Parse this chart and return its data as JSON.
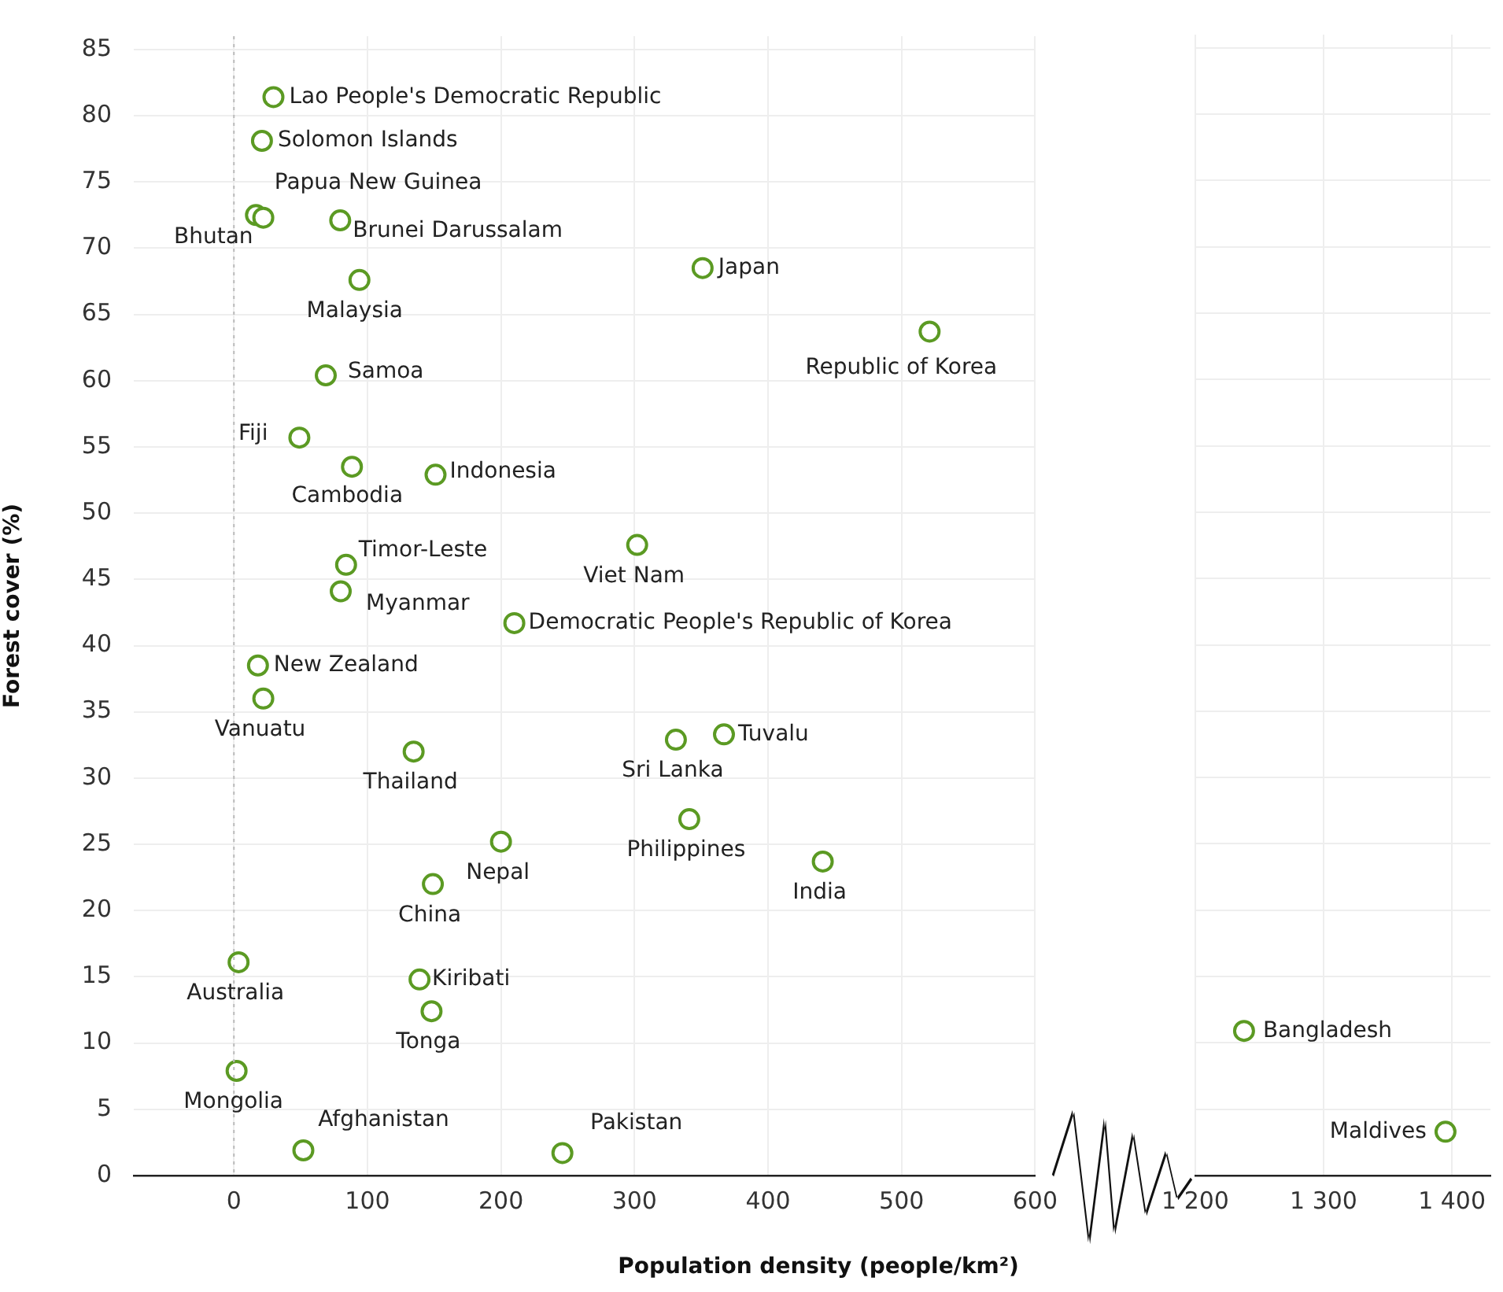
{
  "chart_data": [
    {
      "type": "scatter",
      "xlabel": "Population density (people/km²)",
      "ylabel": "Forest cover (%)",
      "xlim": [
        -75,
        600
      ],
      "ylim": [
        0,
        86
      ],
      "xticks": [
        0,
        100,
        200,
        300,
        400,
        500,
        600
      ],
      "yticks": [
        0,
        5,
        10,
        15,
        20,
        25,
        30,
        35,
        40,
        45,
        50,
        55,
        60,
        65,
        70,
        75,
        80,
        85
      ],
      "grid": true,
      "marker": "circle",
      "ref_lines": [
        {
          "axis": "x",
          "value": 0,
          "color": "#bbbbbb",
          "line_style": "dotted"
        }
      ],
      "series": [
        {
          "color": "#5b9a23",
          "x": [
            29.6,
            21,
            16.5,
            22,
            79.6,
            94,
            351,
            521,
            68.8,
            49,
            88.4,
            151,
            84,
            80,
            302,
            210,
            18,
            22,
            134.6,
            331,
            367,
            341,
            200,
            441,
            149,
            3.5,
            139,
            148,
            2,
            52,
            246
          ],
          "values": [
            81.4,
            78.1,
            72.5,
            72.3,
            72.1,
            67.6,
            68.5,
            63.7,
            60.4,
            55.7,
            53.5,
            52.9,
            46.1,
            44.1,
            47.6,
            41.7,
            38.5,
            36,
            32,
            32.9,
            33.3,
            26.9,
            25.2,
            23.7,
            22,
            16.1,
            14.8,
            12.4,
            7.9,
            1.9,
            1.7
          ]
        }
      ],
      "annotations": [
        {
          "text": "Lao People's Democratic Republic",
          "x": 29.6,
          "y": 81.4
        },
        {
          "text": "Solomon Islands",
          "x": 21,
          "y": 78.1
        },
        {
          "text": "Bhutan",
          "x": 16.5,
          "y": 72.5
        },
        {
          "text": "Papua New Guinea",
          "x": 22,
          "y": 72.3
        },
        {
          "text": "Brunei Darussalam",
          "x": 79.6,
          "y": 72.1
        },
        {
          "text": "Malaysia",
          "x": 94,
          "y": 67.6
        },
        {
          "text": "Japan",
          "x": 351,
          "y": 68.5
        },
        {
          "text": "Republic of Korea",
          "x": 521,
          "y": 63.7
        },
        {
          "text": "Samoa",
          "x": 68.8,
          "y": 60.4
        },
        {
          "text": "Fiji",
          "x": 49,
          "y": 55.7
        },
        {
          "text": "Cambodia",
          "x": 88.4,
          "y": 53.5
        },
        {
          "text": "Indonesia",
          "x": 151,
          "y": 52.9
        },
        {
          "text": "Timor-Leste",
          "x": 84,
          "y": 46.1
        },
        {
          "text": "Myanmar",
          "x": 80,
          "y": 44.1
        },
        {
          "text": "Viet Nam",
          "x": 302,
          "y": 47.6
        },
        {
          "text": "Democratic People's Republic of Korea",
          "x": 210,
          "y": 41.7
        },
        {
          "text": "New Zealand",
          "x": 18,
          "y": 38.5
        },
        {
          "text": "Vanuatu",
          "x": 22,
          "y": 36
        },
        {
          "text": "Thailand",
          "x": 134.6,
          "y": 32
        },
        {
          "text": "Sri Lanka",
          "x": 331,
          "y": 32.9
        },
        {
          "text": "Tuvalu",
          "x": 367,
          "y": 33.3
        },
        {
          "text": "Philippines",
          "x": 341,
          "y": 26.9
        },
        {
          "text": "Nepal",
          "x": 200,
          "y": 25.2
        },
        {
          "text": "India",
          "x": 441,
          "y": 23.7
        },
        {
          "text": "China",
          "x": 149,
          "y": 22
        },
        {
          "text": "Australia",
          "x": 3.5,
          "y": 16.1
        },
        {
          "text": "Kiribati",
          "x": 139,
          "y": 14.8
        },
        {
          "text": "Tonga",
          "x": 148,
          "y": 12.4
        },
        {
          "text": "Mongolia",
          "x": 2,
          "y": 7.9
        },
        {
          "text": "Afghanistan",
          "x": 52,
          "y": 1.9
        },
        {
          "text": "Pakistan",
          "x": 246,
          "y": 1.7
        }
      ]
    },
    {
      "type": "scatter",
      "xlim": [
        1200,
        1430
      ],
      "ylim": [
        0,
        86
      ],
      "xticks": [
        {
          "value": 1200,
          "label": "1 200"
        },
        {
          "value": 1300,
          "label": "1 300"
        },
        {
          "value": 1400,
          "label": "1 400"
        }
      ],
      "yticks": [
        0,
        5,
        10,
        15,
        20,
        25,
        30,
        35,
        40,
        45,
        50,
        55,
        60,
        65,
        70,
        75,
        80,
        85
      ],
      "grid": true,
      "marker": "circle",
      "tick_labels": "x",
      "series": [
        {
          "color": "#5b9a23",
          "x": [
            1238,
            1395
          ],
          "values": [
            10.9,
            3.3
          ]
        }
      ],
      "annotations": [
        {
          "text": "Bangladesh",
          "x": 1238,
          "y": 10.9
        },
        {
          "text": "Maldives",
          "x": 1395,
          "y": 3.3
        }
      ]
    }
  ]
}
